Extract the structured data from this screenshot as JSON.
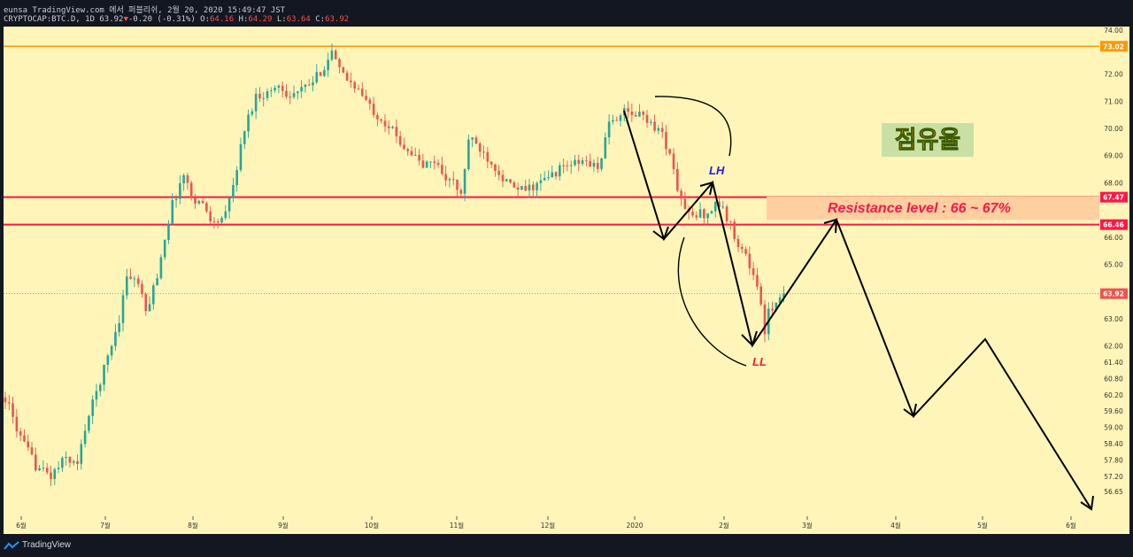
{
  "header": {
    "line1": "eunsa TradingView.com 에서 퍼블리쉬, 2월 20, 2020 15:49:47 JST",
    "symbol": "CRYPTOCAP:BTC.D, 1D",
    "last": "63.92",
    "change": "-0.20 (-0.31%)",
    "o_label": "O:",
    "o": "64.16",
    "h_label": "H:",
    "h": "64.29",
    "l_label": "L:",
    "l": "63.64",
    "c_label": "C:",
    "c": "63.92"
  },
  "footer": {
    "brand": "TradingView"
  },
  "colors": {
    "background": "#fff5b8",
    "up": "#26a69a",
    "down": "#ef5350",
    "resistance": "#ff1744",
    "high_line": "#ff9800",
    "resistance_zone": "#ffcfa0"
  },
  "chart_data": {
    "type": "candlestick",
    "ylim": [
      56.4,
      74.1
    ],
    "y_ticks": [
      "74.00",
      "73.02",
      "72.00",
      "71.00",
      "70.00",
      "69.00",
      "68.00",
      "67.47",
      "66.46",
      "66.00",
      "65.00",
      "63.92",
      "63.00",
      "62.00",
      "61.40",
      "60.80",
      "60.20",
      "59.60",
      "59.00",
      "58.40",
      "57.80",
      "57.20",
      "56.65"
    ],
    "x_ticks": [
      "6월",
      "7월",
      "8월",
      "9월",
      "10월",
      "11월",
      "12월",
      "2020",
      "2월",
      "3월",
      "4월",
      "5월",
      "6월"
    ],
    "horizontal_lines": [
      {
        "price": 73.02,
        "label": "73.02",
        "color": "#ff9800"
      },
      {
        "price": 67.47,
        "label": "67.47",
        "color": "#ff1744"
      },
      {
        "price": 66.46,
        "label": "66.46",
        "color": "#ff1744"
      },
      {
        "price": 63.92,
        "label": "63.92",
        "color": "#ef5350",
        "style": "dotted"
      }
    ],
    "annotations": {
      "title_box": "점유율",
      "resistance": "Resistance level : 66 ~ 67%",
      "lh": "LH",
      "ll": "LL"
    },
    "anchors": [
      [
        0,
        60.1
      ],
      [
        4,
        58.6
      ],
      [
        8,
        57.6
      ],
      [
        12,
        57.2
      ],
      [
        16,
        57.9
      ],
      [
        19,
        57.6
      ],
      [
        21,
        59.0
      ],
      [
        24,
        60.3
      ],
      [
        27,
        61.6
      ],
      [
        30,
        63.0
      ],
      [
        32,
        64.6
      ],
      [
        35,
        64.3
      ],
      [
        37,
        63.2
      ],
      [
        40,
        64.6
      ],
      [
        42,
        66.0
      ],
      [
        44,
        67.2
      ],
      [
        47,
        68.3
      ],
      [
        49,
        67.5
      ],
      [
        52,
        67.2
      ],
      [
        55,
        66.5
      ],
      [
        58,
        66.8
      ],
      [
        60,
        67.9
      ],
      [
        63,
        70.0
      ],
      [
        66,
        71.2
      ],
      [
        69,
        71.3
      ],
      [
        72,
        71.6
      ],
      [
        75,
        71.2
      ],
      [
        78,
        71.4
      ],
      [
        81,
        71.7
      ],
      [
        84,
        72.3
      ],
      [
        86,
        72.8
      ],
      [
        88,
        72.1
      ],
      [
        90,
        71.8
      ],
      [
        92,
        71.6
      ],
      [
        94,
        71.2
      ],
      [
        96,
        70.8
      ],
      [
        98,
        70.5
      ],
      [
        101,
        70.1
      ],
      [
        104,
        69.5
      ],
      [
        107,
        69.1
      ],
      [
        110,
        68.6
      ],
      [
        113,
        68.8
      ],
      [
        116,
        68.2
      ],
      [
        118,
        68.0
      ],
      [
        120,
        67.5
      ],
      [
        122,
        69.6
      ],
      [
        124,
        69.4
      ],
      [
        126,
        69.1
      ],
      [
        129,
        68.6
      ],
      [
        132,
        68.0
      ],
      [
        135,
        67.7
      ],
      [
        138,
        67.8
      ],
      [
        141,
        68.0
      ],
      [
        144,
        68.3
      ],
      [
        147,
        68.6
      ],
      [
        150,
        68.7
      ],
      [
        153,
        68.8
      ],
      [
        156,
        68.5
      ],
      [
        159,
        70.1
      ],
      [
        162,
        70.6
      ],
      [
        165,
        70.5
      ],
      [
        168,
        70.5
      ],
      [
        170,
        70.2
      ],
      [
        173,
        69.8
      ],
      [
        175,
        69.0
      ],
      [
        177,
        67.8
      ],
      [
        179,
        67.0
      ],
      [
        181,
        66.7
      ],
      [
        183,
        66.9
      ],
      [
        185,
        66.8
      ],
      [
        187,
        67.3
      ],
      [
        189,
        67.0
      ],
      [
        191,
        66.4
      ],
      [
        193,
        65.8
      ],
      [
        195,
        65.3
      ],
      [
        197,
        64.6
      ],
      [
        199,
        63.6
      ],
      [
        200,
        62.4
      ],
      [
        201,
        63.2
      ],
      [
        203,
        63.7
      ],
      [
        205,
        63.92
      ]
    ]
  }
}
